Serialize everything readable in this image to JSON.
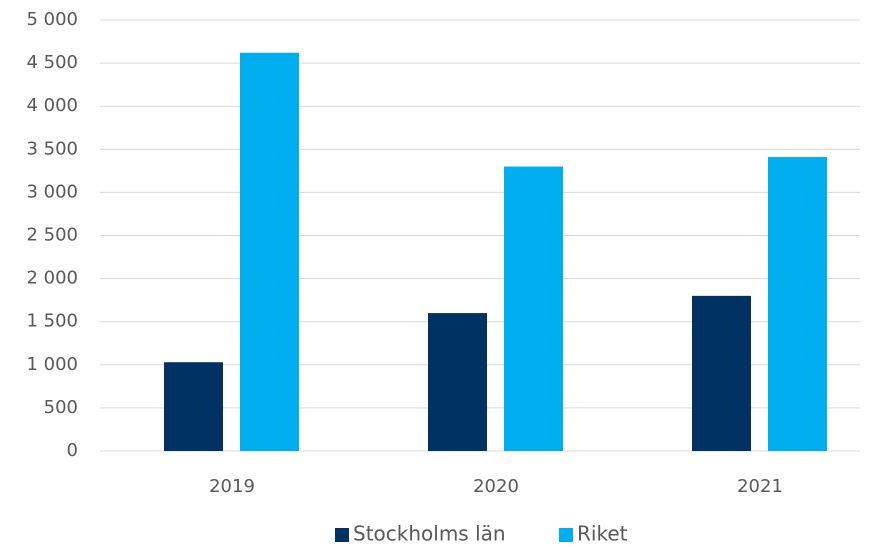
{
  "chart_data": {
    "type": "bar",
    "categories": [
      "2019",
      "2020",
      "2021"
    ],
    "series": [
      {
        "name": "Stockholms län",
        "color": "#003264",
        "values": [
          1030,
          1600,
          1800
        ]
      },
      {
        "name": "Riket",
        "color": "#00adee",
        "values": [
          4620,
          3300,
          3410
        ]
      }
    ],
    "ylim": [
      0,
      5000
    ],
    "yticks": [
      0,
      500,
      {
        "value": 1000,
        "label": "1 000"
      },
      {
        "value": 1500,
        "label": "1 500"
      },
      {
        "value": 2000,
        "label": "2 000"
      },
      {
        "value": 2500,
        "label": "2 500"
      },
      {
        "value": 3000,
        "label": "3 000"
      },
      {
        "value": 3500,
        "label": "3 500"
      },
      {
        "value": 4000,
        "label": "4 000"
      },
      {
        "value": 4500,
        "label": "4 500"
      },
      {
        "value": 5000,
        "label": "5 000"
      }
    ],
    "grid": true,
    "legend": "bottom"
  }
}
